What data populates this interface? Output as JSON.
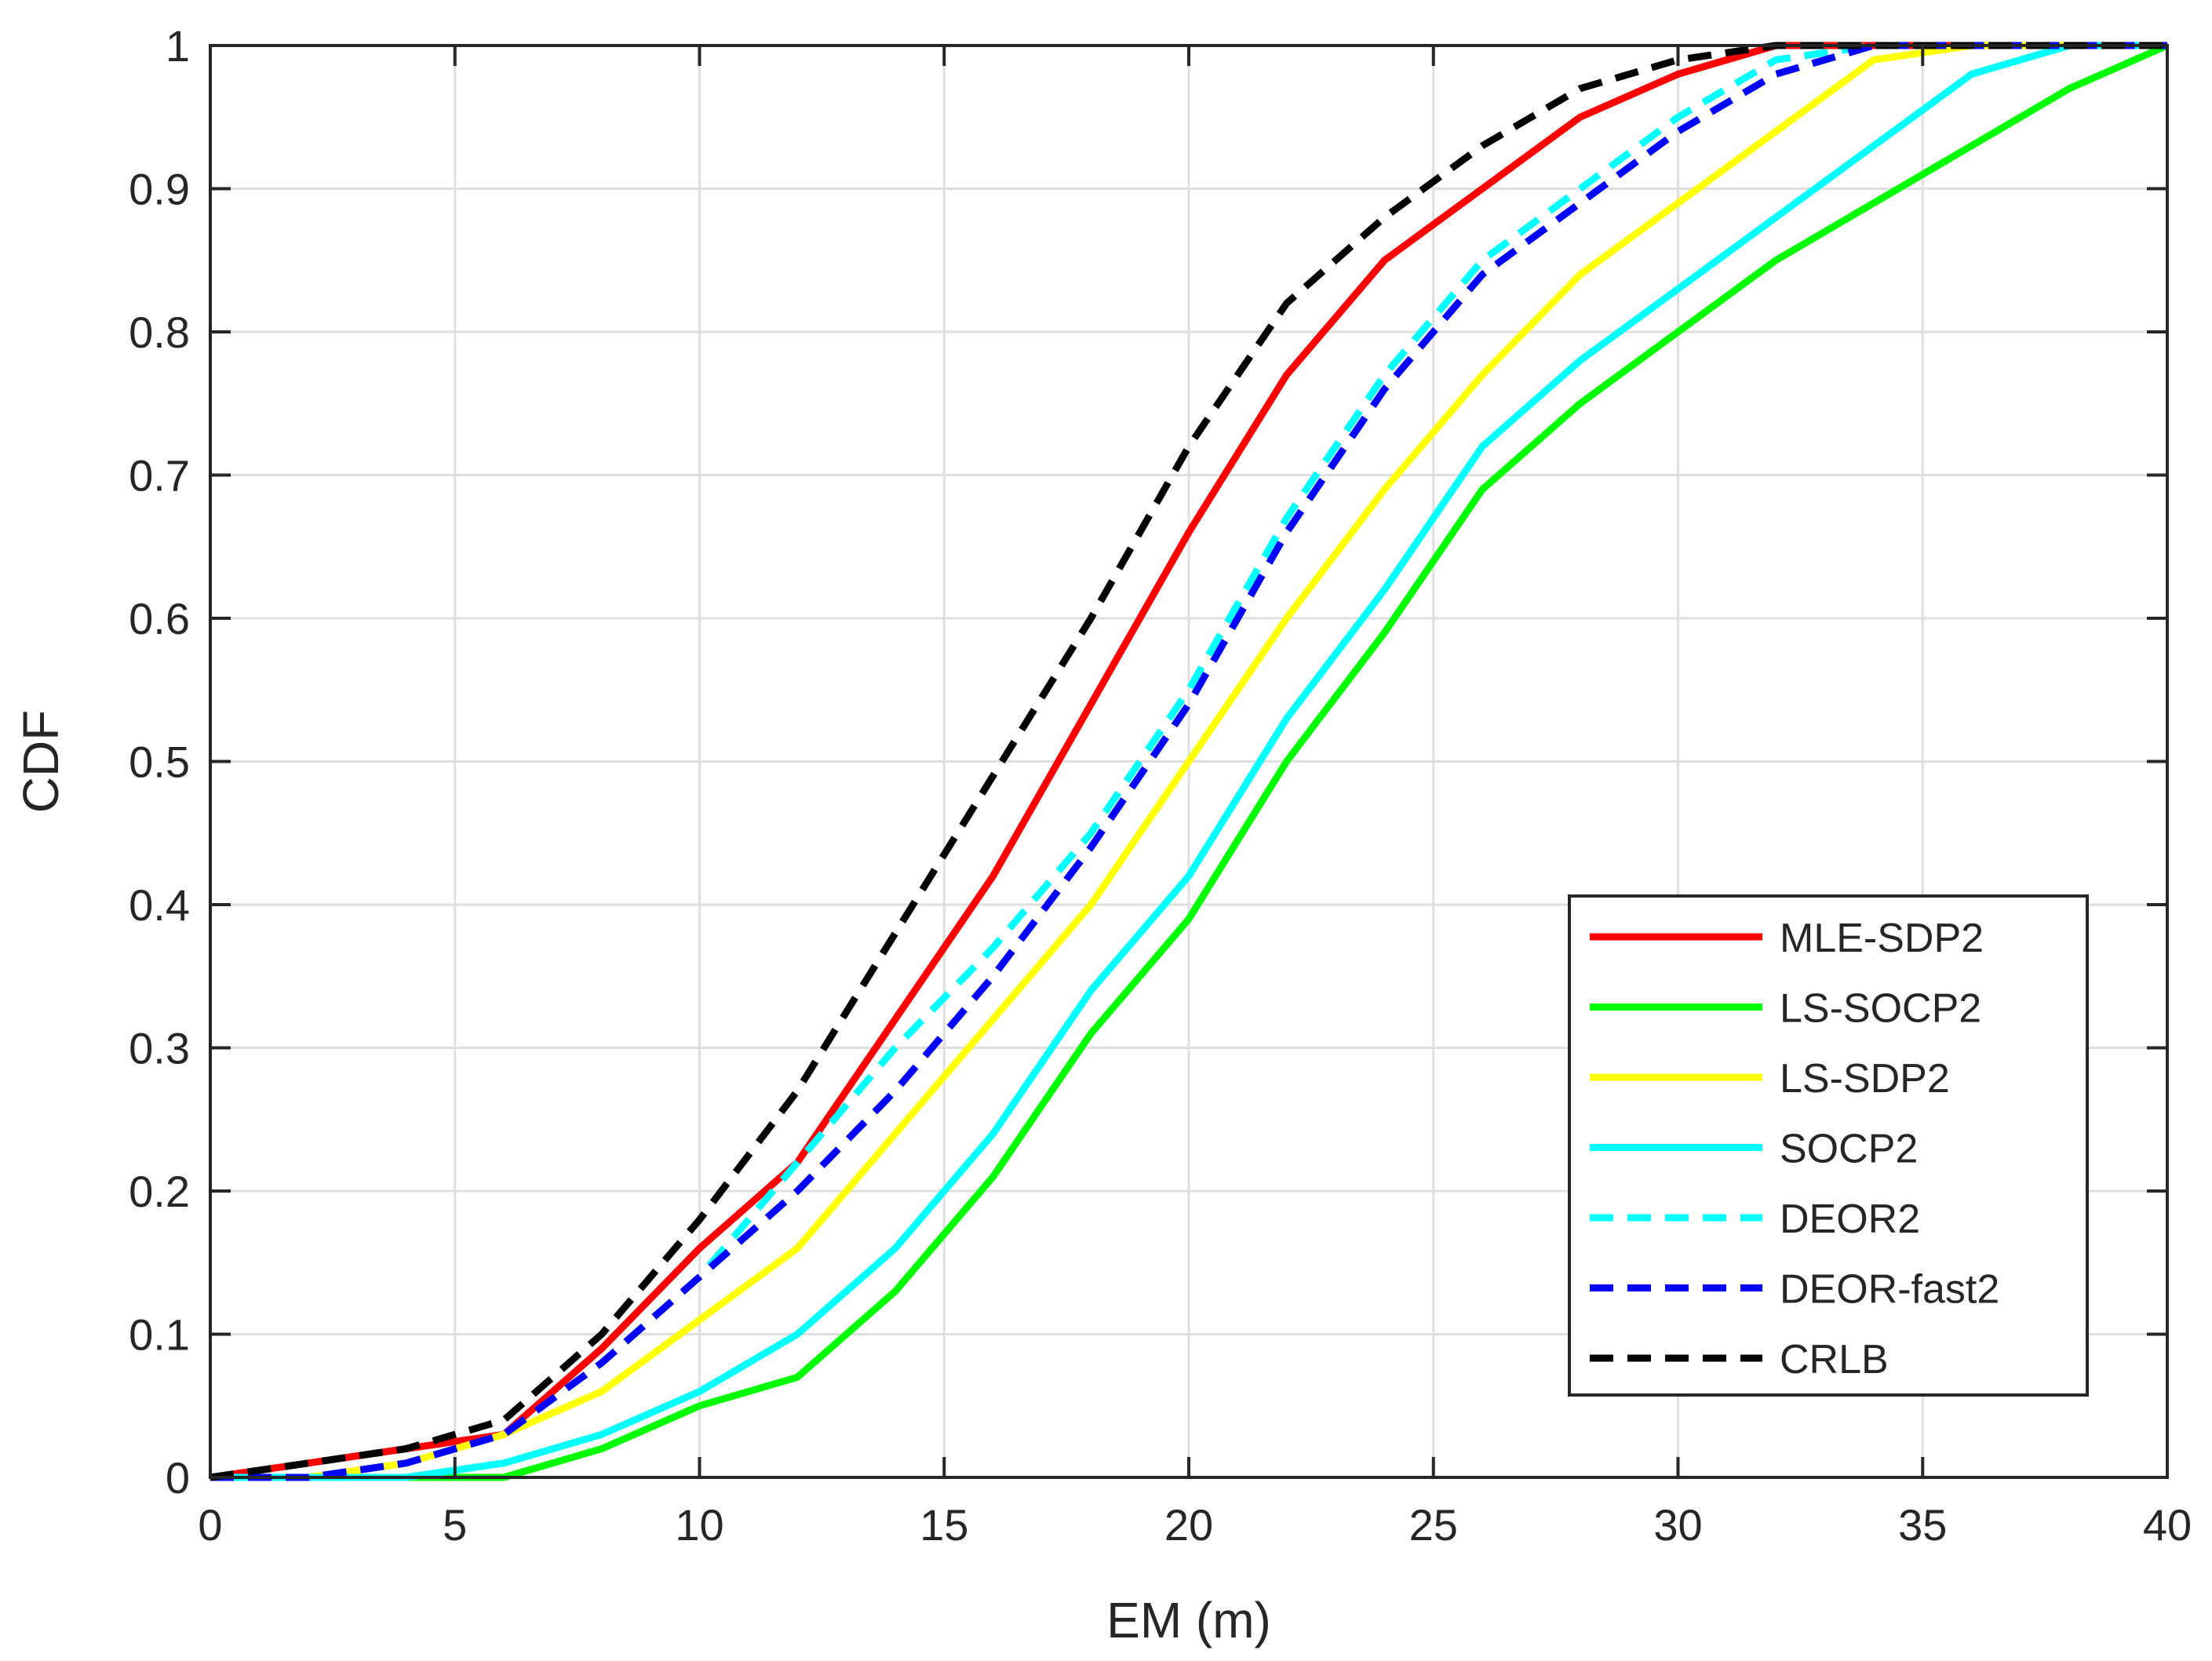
{
  "chart_data": {
    "type": "line",
    "title": "",
    "xlabel": "EM (m)",
    "ylabel": "CDF",
    "xlim": [
      0,
      40
    ],
    "ylim": [
      0,
      1
    ],
    "xticks": [
      0,
      5,
      10,
      15,
      20,
      25,
      30,
      35,
      40
    ],
    "yticks": [
      0,
      0.1,
      0.2,
      0.3,
      0.4,
      0.5,
      0.6,
      0.7,
      0.8,
      0.9,
      1
    ],
    "xtick_labels": [
      "0",
      "5",
      "10",
      "15",
      "20",
      "25",
      "30",
      "35",
      "40"
    ],
    "ytick_labels": [
      "0",
      "0.1",
      "0.2",
      "0.3",
      "0.4",
      "0.5",
      "0.6",
      "0.7",
      "0.8",
      "0.9",
      "1"
    ],
    "grid": true,
    "legend_position": "bottom-right",
    "x": [
      0,
      2,
      4,
      6,
      8,
      10,
      12,
      14,
      16,
      18,
      20,
      22,
      24,
      26,
      28,
      30,
      32,
      34,
      36,
      38,
      40
    ],
    "series": [
      {
        "name": "MLE-SDP2",
        "color": "#ff0000",
        "dashed": false,
        "values": [
          0,
          0.01,
          0.02,
          0.03,
          0.09,
          0.16,
          0.22,
          0.32,
          0.42,
          0.54,
          0.66,
          0.77,
          0.85,
          0.9,
          0.95,
          0.98,
          1,
          1,
          1,
          1,
          1
        ]
      },
      {
        "name": "LS-SOCP2",
        "color": "#00ff00",
        "dashed": false,
        "values": [
          0,
          0,
          0,
          0,
          0.02,
          0.05,
          0.07,
          0.13,
          0.21,
          0.31,
          0.39,
          0.5,
          0.59,
          0.69,
          0.75,
          0.8,
          0.85,
          0.89,
          0.93,
          0.97,
          1
        ]
      },
      {
        "name": "LS-SDP2",
        "color": "#ffff00",
        "dashed": false,
        "values": [
          0,
          0,
          0.01,
          0.03,
          0.06,
          0.11,
          0.16,
          0.24,
          0.32,
          0.4,
          0.5,
          0.6,
          0.69,
          0.77,
          0.84,
          0.89,
          0.94,
          0.99,
          1,
          1,
          1
        ]
      },
      {
        "name": "SOCP2",
        "color": "#00ffff",
        "dashed": false,
        "values": [
          0,
          0,
          0,
          0.01,
          0.03,
          0.06,
          0.1,
          0.16,
          0.24,
          0.34,
          0.42,
          0.53,
          0.62,
          0.72,
          0.78,
          0.83,
          0.88,
          0.93,
          0.98,
          1,
          1
        ]
      },
      {
        "name": "DEOR2",
        "color": "#00ffff",
        "dashed": true,
        "values": [
          0,
          0,
          0.01,
          0.03,
          0.08,
          0.14,
          0.22,
          0.3,
          0.37,
          0.45,
          0.55,
          0.67,
          0.77,
          0.85,
          0.9,
          0.95,
          0.99,
          1,
          1,
          1,
          1
        ]
      },
      {
        "name": "DEOR-fast2",
        "color": "#0000ff",
        "dashed": true,
        "values": [
          0,
          0,
          0.01,
          0.03,
          0.08,
          0.14,
          0.2,
          0.27,
          0.35,
          0.44,
          0.54,
          0.66,
          0.76,
          0.84,
          0.89,
          0.94,
          0.98,
          1,
          1,
          1,
          1
        ]
      },
      {
        "name": "CRLB",
        "color": "#000000",
        "dashed": true,
        "values": [
          0,
          0.01,
          0.02,
          0.04,
          0.1,
          0.18,
          0.27,
          0.38,
          0.49,
          0.6,
          0.72,
          0.82,
          0.88,
          0.93,
          0.97,
          0.99,
          1,
          1,
          1,
          1,
          1
        ]
      }
    ]
  }
}
